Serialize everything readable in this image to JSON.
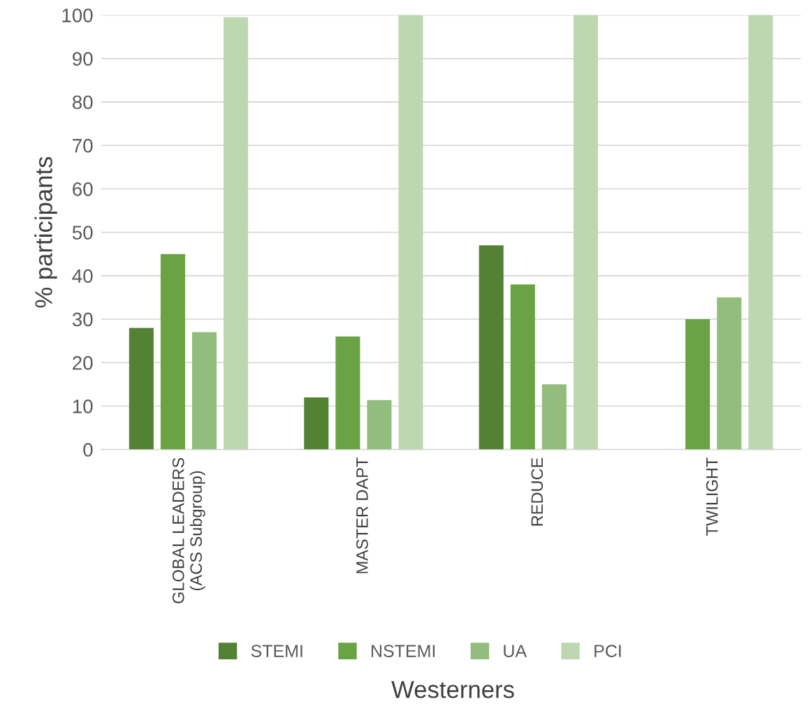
{
  "chart_data": {
    "type": "bar",
    "xlabel": "Westerners",
    "ylabel": "% participants",
    "categories": [
      "GLOBAL LEADERS\n(ACS Subgroup)",
      "MASTER DAPT",
      "REDUCE",
      "TWILIGHT"
    ],
    "series": [
      {
        "name": "STEMI",
        "color": "#548235",
        "values": [
          28,
          12,
          47,
          null
        ]
      },
      {
        "name": "NSTEMI",
        "color": "#6aa343",
        "values": [
          45,
          26,
          38,
          30
        ]
      },
      {
        "name": "UA",
        "color": "#93bd7c",
        "values": [
          27,
          11.4,
          15,
          35
        ]
      },
      {
        "name": "PCI",
        "color": "#bdd7b1",
        "values": [
          99.5,
          100,
          100,
          100
        ]
      }
    ],
    "ylim": [
      0,
      100
    ],
    "yticks": [
      0,
      10,
      20,
      30,
      40,
      50,
      60,
      70,
      80,
      90,
      100
    ],
    "grid": "y",
    "legend": "bottom"
  }
}
